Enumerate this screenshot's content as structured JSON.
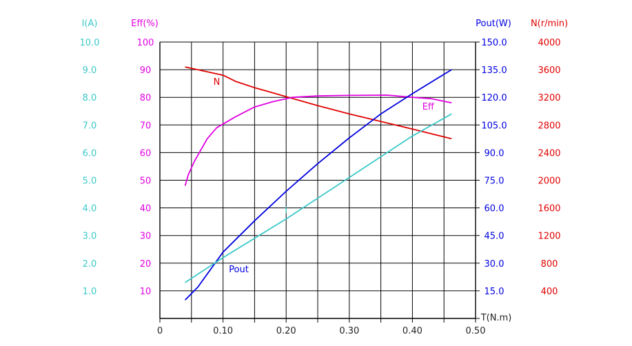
{
  "chart_data": {
    "type": "line",
    "xlabel": "T(N.m)",
    "x_ticks": [
      "0",
      "0.10",
      "0.20",
      "0.30",
      "0.40",
      "0.50"
    ],
    "xlim": [
      0,
      0.5
    ],
    "axes": [
      {
        "id": "I",
        "label": "I(A)",
        "color": "#3cc8c8",
        "ticks": [
          "10.0",
          "9.0",
          "8.0",
          "7.0",
          "6.0",
          "5.0",
          "4.0",
          "3.0",
          "2.0",
          "1.0"
        ],
        "range": [
          0,
          10
        ]
      },
      {
        "id": "Eff",
        "label": "Eff(%)",
        "color": "#e000e0",
        "ticks": [
          "100",
          "90",
          "80",
          "70",
          "60",
          "50",
          "40",
          "30",
          "20",
          "10"
        ],
        "range": [
          0,
          100
        ]
      },
      {
        "id": "Pout",
        "label": "Pout(W)",
        "color": "#0000e0",
        "ticks": [
          "150.0",
          "135.0",
          "120.0",
          "105.0",
          "90.0",
          "75.0",
          "60.0",
          "45.0",
          "30.0",
          "15.0"
        ],
        "range": [
          0,
          150
        ]
      },
      {
        "id": "N",
        "label": "N(r/min)",
        "color": "#e00000",
        "ticks": [
          "4000",
          "3600",
          "3200",
          "2800",
          "2400",
          "2000",
          "1600",
          "1200",
          "800",
          "400"
        ],
        "range": [
          0,
          4000
        ]
      }
    ],
    "series": [
      {
        "name": "N",
        "axis": "N",
        "color": "#e00000",
        "label_at": [
          0.09,
          3380
        ],
        "x": [
          0.04,
          0.09,
          0.1,
          0.12,
          0.15,
          0.2,
          0.25,
          0.3,
          0.35,
          0.4,
          0.462
        ],
        "y": [
          3640,
          3540,
          3520,
          3430,
          3340,
          3210,
          3080,
          2960,
          2850,
          2740,
          2600
        ]
      },
      {
        "name": "Eff",
        "axis": "Eff",
        "color": "#e000e0",
        "label_at": [
          0.425,
          75.5
        ],
        "x": [
          0.04,
          0.045,
          0.055,
          0.065,
          0.075,
          0.09,
          0.105,
          0.12,
          0.15,
          0.18,
          0.21,
          0.25,
          0.3,
          0.36,
          0.4,
          0.43,
          0.462
        ],
        "y": [
          48,
          52,
          57,
          61,
          65,
          69,
          71,
          73,
          76.5,
          78.5,
          80,
          80.5,
          80.7,
          80.8,
          80,
          79.5,
          78
        ]
      },
      {
        "name": "Pout",
        "axis": "Pout",
        "color": "#0000e0",
        "label_at": [
          0.125,
          25
        ],
        "x": [
          0.04,
          0.06,
          0.1,
          0.15,
          0.2,
          0.25,
          0.3,
          0.35,
          0.4,
          0.462
        ],
        "y": [
          10,
          17,
          36,
          53,
          69,
          84,
          98,
          111,
          122,
          135
        ]
      },
      {
        "name": "I",
        "axis": "I",
        "color": "#3cc8c8",
        "label_at": [
          0.2,
          3.8
        ],
        "x": [
          0.04,
          0.1,
          0.2,
          0.3,
          0.4,
          0.462
        ],
        "y": [
          1.3,
          2.2,
          3.6,
          5.1,
          6.6,
          7.4
        ]
      }
    ]
  }
}
